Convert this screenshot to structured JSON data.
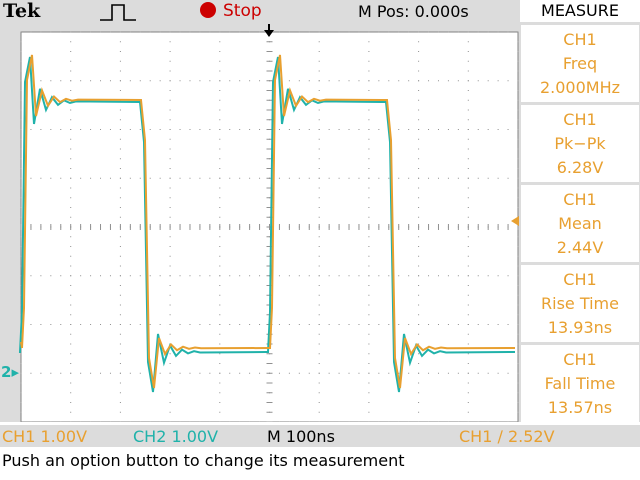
{
  "header": {
    "brand": "Tek",
    "run_status": "Stop",
    "m_pos": "M Pos: 0.000s"
  },
  "measure_menu": {
    "title": "MEASURE",
    "items": [
      {
        "source": "CH1",
        "type": "Freq",
        "value": "2.000MHz"
      },
      {
        "source": "CH1",
        "type": "Pk−Pk",
        "value": "6.28V"
      },
      {
        "source": "CH1",
        "type": "Mean",
        "value": "2.44V"
      },
      {
        "source": "CH1",
        "type": "Rise Time",
        "value": "13.93ns"
      },
      {
        "source": "CH1",
        "type": "Fall Time",
        "value": "13.57ns"
      }
    ]
  },
  "status_bar": {
    "ch1_scale": "CH1  1.00V",
    "ch2_scale": "CH2  1.00V",
    "time_scale": "M 100ns",
    "trigger": "CH1 ∕ 2.52V"
  },
  "message": "Push an option button to change its measurement",
  "markers": {
    "ch2_ground": "2"
  },
  "colors": {
    "ch1": "#e8a030",
    "ch2": "#20b2aa",
    "run_stop": "#cc0000",
    "grid": "#808080"
  },
  "chart_data": {
    "type": "line",
    "description_of_axes": "oscilloscope display, 10 horizontal divisions x 8 vertical divisions",
    "time_per_div_ns": 100,
    "volts_per_div": 1.0,
    "series": [
      {
        "name": "CH1",
        "period_ns": 500,
        "low_v": -0.2,
        "high_v": 5.2
      },
      {
        "name": "CH2",
        "period_ns": 500,
        "low_v": -0.5,
        "high_v": 5.2
      }
    ]
  }
}
